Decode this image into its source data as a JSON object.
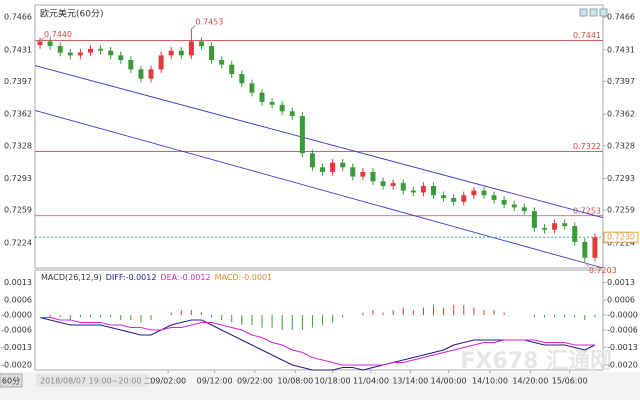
{
  "chart_data": {
    "type": "candlestick",
    "title": "欧元美元(60分)",
    "period_tab": "60分",
    "crosshair_time": "2018/08/07 19:00~20:00 二",
    "watermark": "FX678 汇通网",
    "up_color": "#e03a3a",
    "down_color": "#3a9a3a",
    "open": [
      0.7436,
      0.744,
      0.7435,
      0.7428,
      0.7425,
      0.7428,
      0.7432,
      0.743,
      0.7425,
      0.742,
      0.741,
      0.74,
      0.741,
      0.7425,
      0.743,
      0.7425,
      0.744,
      0.7435,
      0.742,
      0.7415,
      0.7405,
      0.7395,
      0.7385,
      0.7375,
      0.7372,
      0.7365,
      0.736,
      0.732,
      0.7305,
      0.73,
      0.731,
      0.7305,
      0.7295,
      0.73,
      0.729,
      0.7285,
      0.7288,
      0.728,
      0.7278,
      0.7285,
      0.7275,
      0.7272,
      0.7268,
      0.7275,
      0.728,
      0.7275,
      0.727,
      0.7265,
      0.7262,
      0.7258,
      0.724,
      0.7238,
      0.7245,
      0.7242,
      0.7225,
      0.7208
    ],
    "high": [
      0.7444,
      0.7444,
      0.7439,
      0.7432,
      0.7432,
      0.7436,
      0.7436,
      0.7434,
      0.7429,
      0.7424,
      0.7414,
      0.7414,
      0.7429,
      0.7434,
      0.7434,
      0.7453,
      0.7444,
      0.7439,
      0.7424,
      0.7419,
      0.7409,
      0.7399,
      0.7389,
      0.7379,
      0.7376,
      0.7369,
      0.7364,
      0.7324,
      0.7309,
      0.7314,
      0.7314,
      0.7309,
      0.7304,
      0.7304,
      0.7294,
      0.7292,
      0.7292,
      0.7284,
      0.7289,
      0.7289,
      0.7279,
      0.7276,
      0.7279,
      0.7284,
      0.7284,
      0.7279,
      0.7274,
      0.7269,
      0.7266,
      0.7262,
      0.7244,
      0.7249,
      0.7249,
      0.7246,
      0.7229,
      0.7234
    ],
    "low": [
      0.7432,
      0.7431,
      0.7424,
      0.7421,
      0.7421,
      0.7424,
      0.7426,
      0.7421,
      0.7416,
      0.7406,
      0.7396,
      0.7396,
      0.7406,
      0.7421,
      0.7421,
      0.7421,
      0.7431,
      0.7416,
      0.7411,
      0.7401,
      0.7391,
      0.7381,
      0.7371,
      0.7368,
      0.7361,
      0.7356,
      0.7316,
      0.7301,
      0.7296,
      0.7296,
      0.7301,
      0.7291,
      0.7291,
      0.7286,
      0.7281,
      0.7281,
      0.7276,
      0.7274,
      0.7274,
      0.7271,
      0.7268,
      0.7264,
      0.7264,
      0.7271,
      0.7271,
      0.7266,
      0.7261,
      0.7258,
      0.7254,
      0.7236,
      0.7234,
      0.7234,
      0.7238,
      0.7221,
      0.7203,
      0.7204
    ],
    "close": [
      0.744,
      0.7435,
      0.7428,
      0.7425,
      0.7428,
      0.7432,
      0.743,
      0.7425,
      0.742,
      0.741,
      0.74,
      0.741,
      0.7425,
      0.743,
      0.7425,
      0.744,
      0.7435,
      0.742,
      0.7415,
      0.7405,
      0.7395,
      0.7385,
      0.7375,
      0.7372,
      0.7365,
      0.736,
      0.732,
      0.7305,
      0.73,
      0.731,
      0.7305,
      0.7295,
      0.73,
      0.729,
      0.7285,
      0.7288,
      0.728,
      0.7278,
      0.7285,
      0.7275,
      0.7272,
      0.7268,
      0.7275,
      0.728,
      0.7275,
      0.727,
      0.7265,
      0.7262,
      0.7258,
      0.724,
      0.7238,
      0.7245,
      0.7242,
      0.7225,
      0.7208,
      0.723
    ],
    "xlim": [
      -0.5,
      55.8
    ],
    "xticks": [
      {
        "value": 12.7,
        "label": "09/02:00"
      },
      {
        "value": 17.3,
        "label": "09/12:00"
      },
      {
        "value": 21.3,
        "label": "09/22:00"
      },
      {
        "value": 25.3,
        "label": "10/08:00"
      },
      {
        "value": 29.0,
        "label": "10/18:00"
      },
      {
        "value": 32.8,
        "label": "11/04:00"
      },
      {
        "value": 36.7,
        "label": "13/14:00"
      },
      {
        "value": 40.5,
        "label": "14/00:00"
      },
      {
        "value": 44.6,
        "label": "14/10:00"
      },
      {
        "value": 48.6,
        "label": "14/20:00"
      },
      {
        "value": 52.5,
        "label": "15/06:00"
      }
    ],
    "ylim": [
      0.7197,
      0.7479
    ],
    "yticks": [
      0.7466,
      0.7431,
      0.7397,
      0.7362,
      0.7328,
      0.7293,
      0.7259,
      0.7224
    ],
    "hlines": [
      0.7441,
      0.7322,
      0.7253
    ],
    "hline_color": "#d04848",
    "last_price": {
      "value": 0.723,
      "label": "0.7230"
    },
    "last_price_color": "#3aa0a0",
    "annotations": [
      {
        "index": 0,
        "value": 0.744,
        "label": "0.7440"
      },
      {
        "index": 15,
        "value": 0.7453
      },
      {
        "index": 54,
        "value": 0.7203
      }
    ],
    "channel_color": "#3a3ac8",
    "channel": [
      {
        "start": 0.7414,
        "end": 0.7251
      },
      {
        "start": 0.7366,
        "end": 0.7197
      }
    ],
    "macd": {
      "params": "MACD(26,12,9)",
      "readouts": [
        "DIFF:-0.0012",
        "DEA:-0.0012",
        "MACD:-0.0001"
      ],
      "ylim": [
        -0.0022,
        0.0018
      ],
      "yticks": [
        0.0013,
        0.0006,
        {
          "value": 0,
          "label": "-0.0000"
        },
        -0.0006,
        -0.0013,
        {
          "value": -0.002,
          "label": "-0.0020"
        }
      ],
      "series": [
        {
          "name": "DIFF",
          "color": "#1c1c80",
          "values": [
            -0.0001,
            -0.0002,
            -0.0003,
            -0.0004,
            -0.0004,
            -0.0004,
            -0.0004,
            -0.0005,
            -0.0006,
            -0.0007,
            -0.0008,
            -0.0008,
            -0.0006,
            -0.0004,
            -0.0003,
            -0.0002,
            -0.0002,
            -0.0004,
            -0.0006,
            -0.0008,
            -0.001,
            -0.0012,
            -0.0014,
            -0.0016,
            -0.0018,
            -0.002,
            -0.0021,
            -0.0022,
            -0.0022,
            -0.0022,
            -0.0021,
            -0.0021,
            -0.0022,
            -0.0021,
            -0.002,
            -0.0019,
            -0.0018,
            -0.0017,
            -0.0016,
            -0.0015,
            -0.0014,
            -0.0012,
            -0.0011,
            -0.001,
            -0.001,
            -0.001,
            -0.001,
            -0.001,
            -0.001,
            -0.0011,
            -0.0012,
            -0.0012,
            -0.0012,
            -0.0013,
            -0.0014,
            -0.0012
          ]
        },
        {
          "name": "DEA",
          "color": "#d424d4",
          "values": [
            -0.0001,
            -0.0001,
            -0.0002,
            -0.0002,
            -0.0003,
            -0.0003,
            -0.0003,
            -0.0004,
            -0.0004,
            -0.0005,
            -0.0005,
            -0.0006,
            -0.0006,
            -0.0005,
            -0.0005,
            -0.0004,
            -0.0003,
            -0.0003,
            -0.0004,
            -0.0005,
            -0.0006,
            -0.0008,
            -0.0009,
            -0.0011,
            -0.0012,
            -0.0014,
            -0.0015,
            -0.0017,
            -0.0018,
            -0.0019,
            -0.002,
            -0.002,
            -0.002,
            -0.002,
            -0.002,
            -0.0019,
            -0.0019,
            -0.0018,
            -0.0017,
            -0.0016,
            -0.0015,
            -0.0014,
            -0.0013,
            -0.0012,
            -0.0011,
            -0.0011,
            -0.001,
            -0.001,
            -0.001,
            -0.001,
            -0.0011,
            -0.0011,
            -0.0011,
            -0.0012,
            -0.0012,
            -0.0012
          ]
        }
      ],
      "histogram": {
        "name": "MACD",
        "color": "#e08a20",
        "up_color": "#e03a3a",
        "down_color": "#3a9a3a",
        "values": [
          0,
          -0.0001,
          -0.0001,
          -0.0002,
          -0.0001,
          -0.0001,
          -0.0001,
          -0.0001,
          -0.0002,
          -0.0002,
          -0.0003,
          -0.0002,
          0,
          0.0001,
          0.0002,
          0.0002,
          0.0001,
          -0.0001,
          -0.0002,
          -0.0003,
          -0.0004,
          -0.0004,
          -0.0005,
          -0.0005,
          -0.0006,
          -0.0006,
          -0.0006,
          -0.0005,
          -0.0004,
          -0.0003,
          -0.0001,
          0,
          0.0001,
          0.0002,
          0.0001,
          0.0002,
          0.0003,
          0.0002,
          0.0003,
          0.0004,
          0.0003,
          0.0004,
          0.0004,
          0.0003,
          0.0002,
          0.0002,
          0.0001,
          0,
          0,
          -0.0001,
          -0.0001,
          -0.0001,
          -0.0001,
          -0.0001,
          -0.0002,
          -0.0001
        ]
      }
    }
  }
}
